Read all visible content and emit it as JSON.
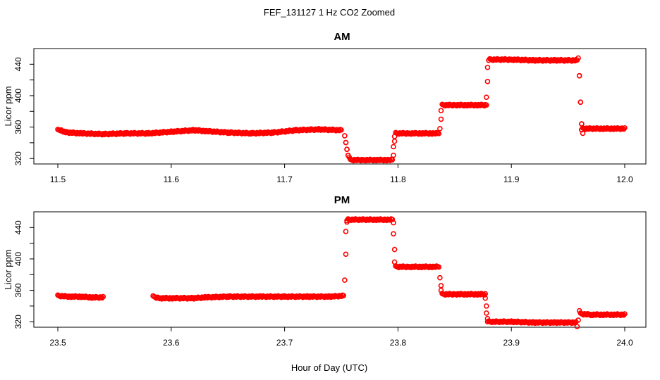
{
  "figure": {
    "title": "FEF_131127  1 Hz CO2 Zoomed",
    "xlabel": "Hour of Day (UTC)"
  },
  "chart_data": [
    {
      "type": "scatter",
      "title": "AM",
      "xlabel": "",
      "ylabel": "Licor ppm",
      "xlim": [
        11.5,
        12.0
      ],
      "ylim": [
        313,
        460
      ],
      "xticks": [
        "11.5",
        "11.6",
        "11.7",
        "11.8",
        "11.9",
        "12.0"
      ],
      "yticks": [
        "320",
        "360",
        "400",
        "440"
      ],
      "grid": false,
      "marker_color": "#ff0000",
      "series": [
        {
          "segments": [
            {
              "x": [
                11.5,
                11.503,
                11.506,
                11.51,
                11.52,
                11.54,
                11.56,
                11.58,
                11.6,
                11.62,
                11.63,
                11.65,
                11.67,
                11.69,
                11.71,
                11.73,
                11.75
              ],
              "y": [
                356,
                356,
                354,
                353,
                352,
                351,
                352,
                352,
                354,
                356,
                355,
                353,
                352,
                353,
                356,
                357,
                356
              ]
            },
            {
              "x": [
                11.753,
                11.754,
                11.755,
                11.756,
                11.757
              ],
              "y": [
                348,
                340,
                332,
                325,
                321
              ]
            },
            {
              "x": [
                11.758,
                11.77,
                11.78,
                11.79,
                11.795
              ],
              "y": [
                318,
                318,
                318,
                318,
                318
              ]
            },
            {
              "x": [
                11.796,
                11.796,
                11.797,
                11.797
              ],
              "y": [
                324,
                335,
                342,
                348
              ]
            },
            {
              "x": [
                11.798,
                11.81,
                11.82,
                11.83,
                11.836
              ],
              "y": [
                352,
                352,
                352,
                352,
                352
              ]
            },
            {
              "x": [
                11.837,
                11.838,
                11.838
              ],
              "y": [
                358,
                370,
                381
              ]
            },
            {
              "x": [
                11.839,
                11.85,
                11.86,
                11.87,
                11.878
              ],
              "y": [
                388,
                388,
                388,
                388,
                388
              ]
            },
            {
              "x": [
                11.878,
                11.879,
                11.879,
                11.88
              ],
              "y": [
                398,
                418,
                436,
                445
              ]
            },
            {
              "x": [
                11.881,
                11.9,
                11.92,
                11.94,
                11.958
              ],
              "y": [
                446,
                446,
                445,
                445,
                445
              ]
            },
            {
              "x": [
                11.959,
                11.96,
                11.961,
                11.962,
                11.962,
                11.963
              ],
              "y": [
                447,
                425,
                392,
                365,
                356,
                352
              ]
            },
            {
              "x": [
                11.963,
                11.97,
                11.98,
                11.99,
                12.0
              ],
              "y": [
                358,
                358,
                358,
                358,
                358
              ]
            }
          ]
        }
      ]
    },
    {
      "type": "scatter",
      "title": "PM",
      "xlabel": "",
      "ylabel": "Licor ppm",
      "xlim": [
        23.5,
        24.0
      ],
      "ylim": [
        313,
        460
      ],
      "xticks": [
        "23.5",
        "23.6",
        "23.7",
        "23.8",
        "23.9",
        "24.0"
      ],
      "yticks": [
        "320",
        "360",
        "400",
        "440"
      ],
      "grid": false,
      "marker_color": "#ff0000",
      "series": [
        {
          "segments": [
            {
              "x": [
                23.5,
                23.51,
                23.52,
                23.53,
                23.54
              ],
              "y": [
                353,
                352,
                352,
                351,
                351
              ]
            },
            {
              "x": [
                23.584,
                23.59,
                23.6,
                23.62,
                23.63,
                23.65,
                23.68,
                23.7,
                23.72,
                23.74,
                23.752
              ],
              "y": [
                352,
                350,
                350,
                350,
                351,
                352,
                352,
                352,
                352,
                352,
                353
              ]
            },
            {
              "x": [
                23.753,
                23.754,
                23.754,
                23.755,
                23.755
              ],
              "y": [
                373,
                406,
                435,
                447,
                449
              ]
            },
            {
              "x": [
                23.756,
                23.77,
                23.78,
                23.79,
                23.795
              ],
              "y": [
                450,
                450,
                450,
                450,
                450
              ]
            },
            {
              "x": [
                23.796,
                23.796,
                23.797,
                23.797,
                23.798
              ],
              "y": [
                446,
                432,
                412,
                396,
                391
              ]
            },
            {
              "x": [
                23.798,
                23.81,
                23.82,
                23.83,
                23.836
              ],
              "y": [
                390,
                390,
                390,
                390,
                390
              ]
            },
            {
              "x": [
                23.837,
                23.838,
                23.838,
                23.839
              ],
              "y": [
                376,
                366,
                360,
                356
              ]
            },
            {
              "x": [
                23.839,
                23.85,
                23.86,
                23.87,
                23.877
              ],
              "y": [
                355,
                355,
                355,
                355,
                355
              ]
            },
            {
              "x": [
                23.877,
                23.878,
                23.878,
                23.879,
                23.879
              ],
              "y": [
                350,
                340,
                331,
                324,
                320
              ]
            },
            {
              "x": [
                23.88,
                23.9,
                23.92,
                23.94,
                23.957
              ],
              "y": [
                320,
                320,
                319,
                319,
                319
              ]
            },
            {
              "x": [
                23.958,
                23.959,
                23.96
              ],
              "y": [
                314,
                322,
                334
              ]
            },
            {
              "x": [
                23.961,
                23.97,
                23.98,
                23.99,
                24.0
              ],
              "y": [
                330,
                329,
                329,
                329,
                329
              ]
            }
          ]
        }
      ]
    }
  ]
}
